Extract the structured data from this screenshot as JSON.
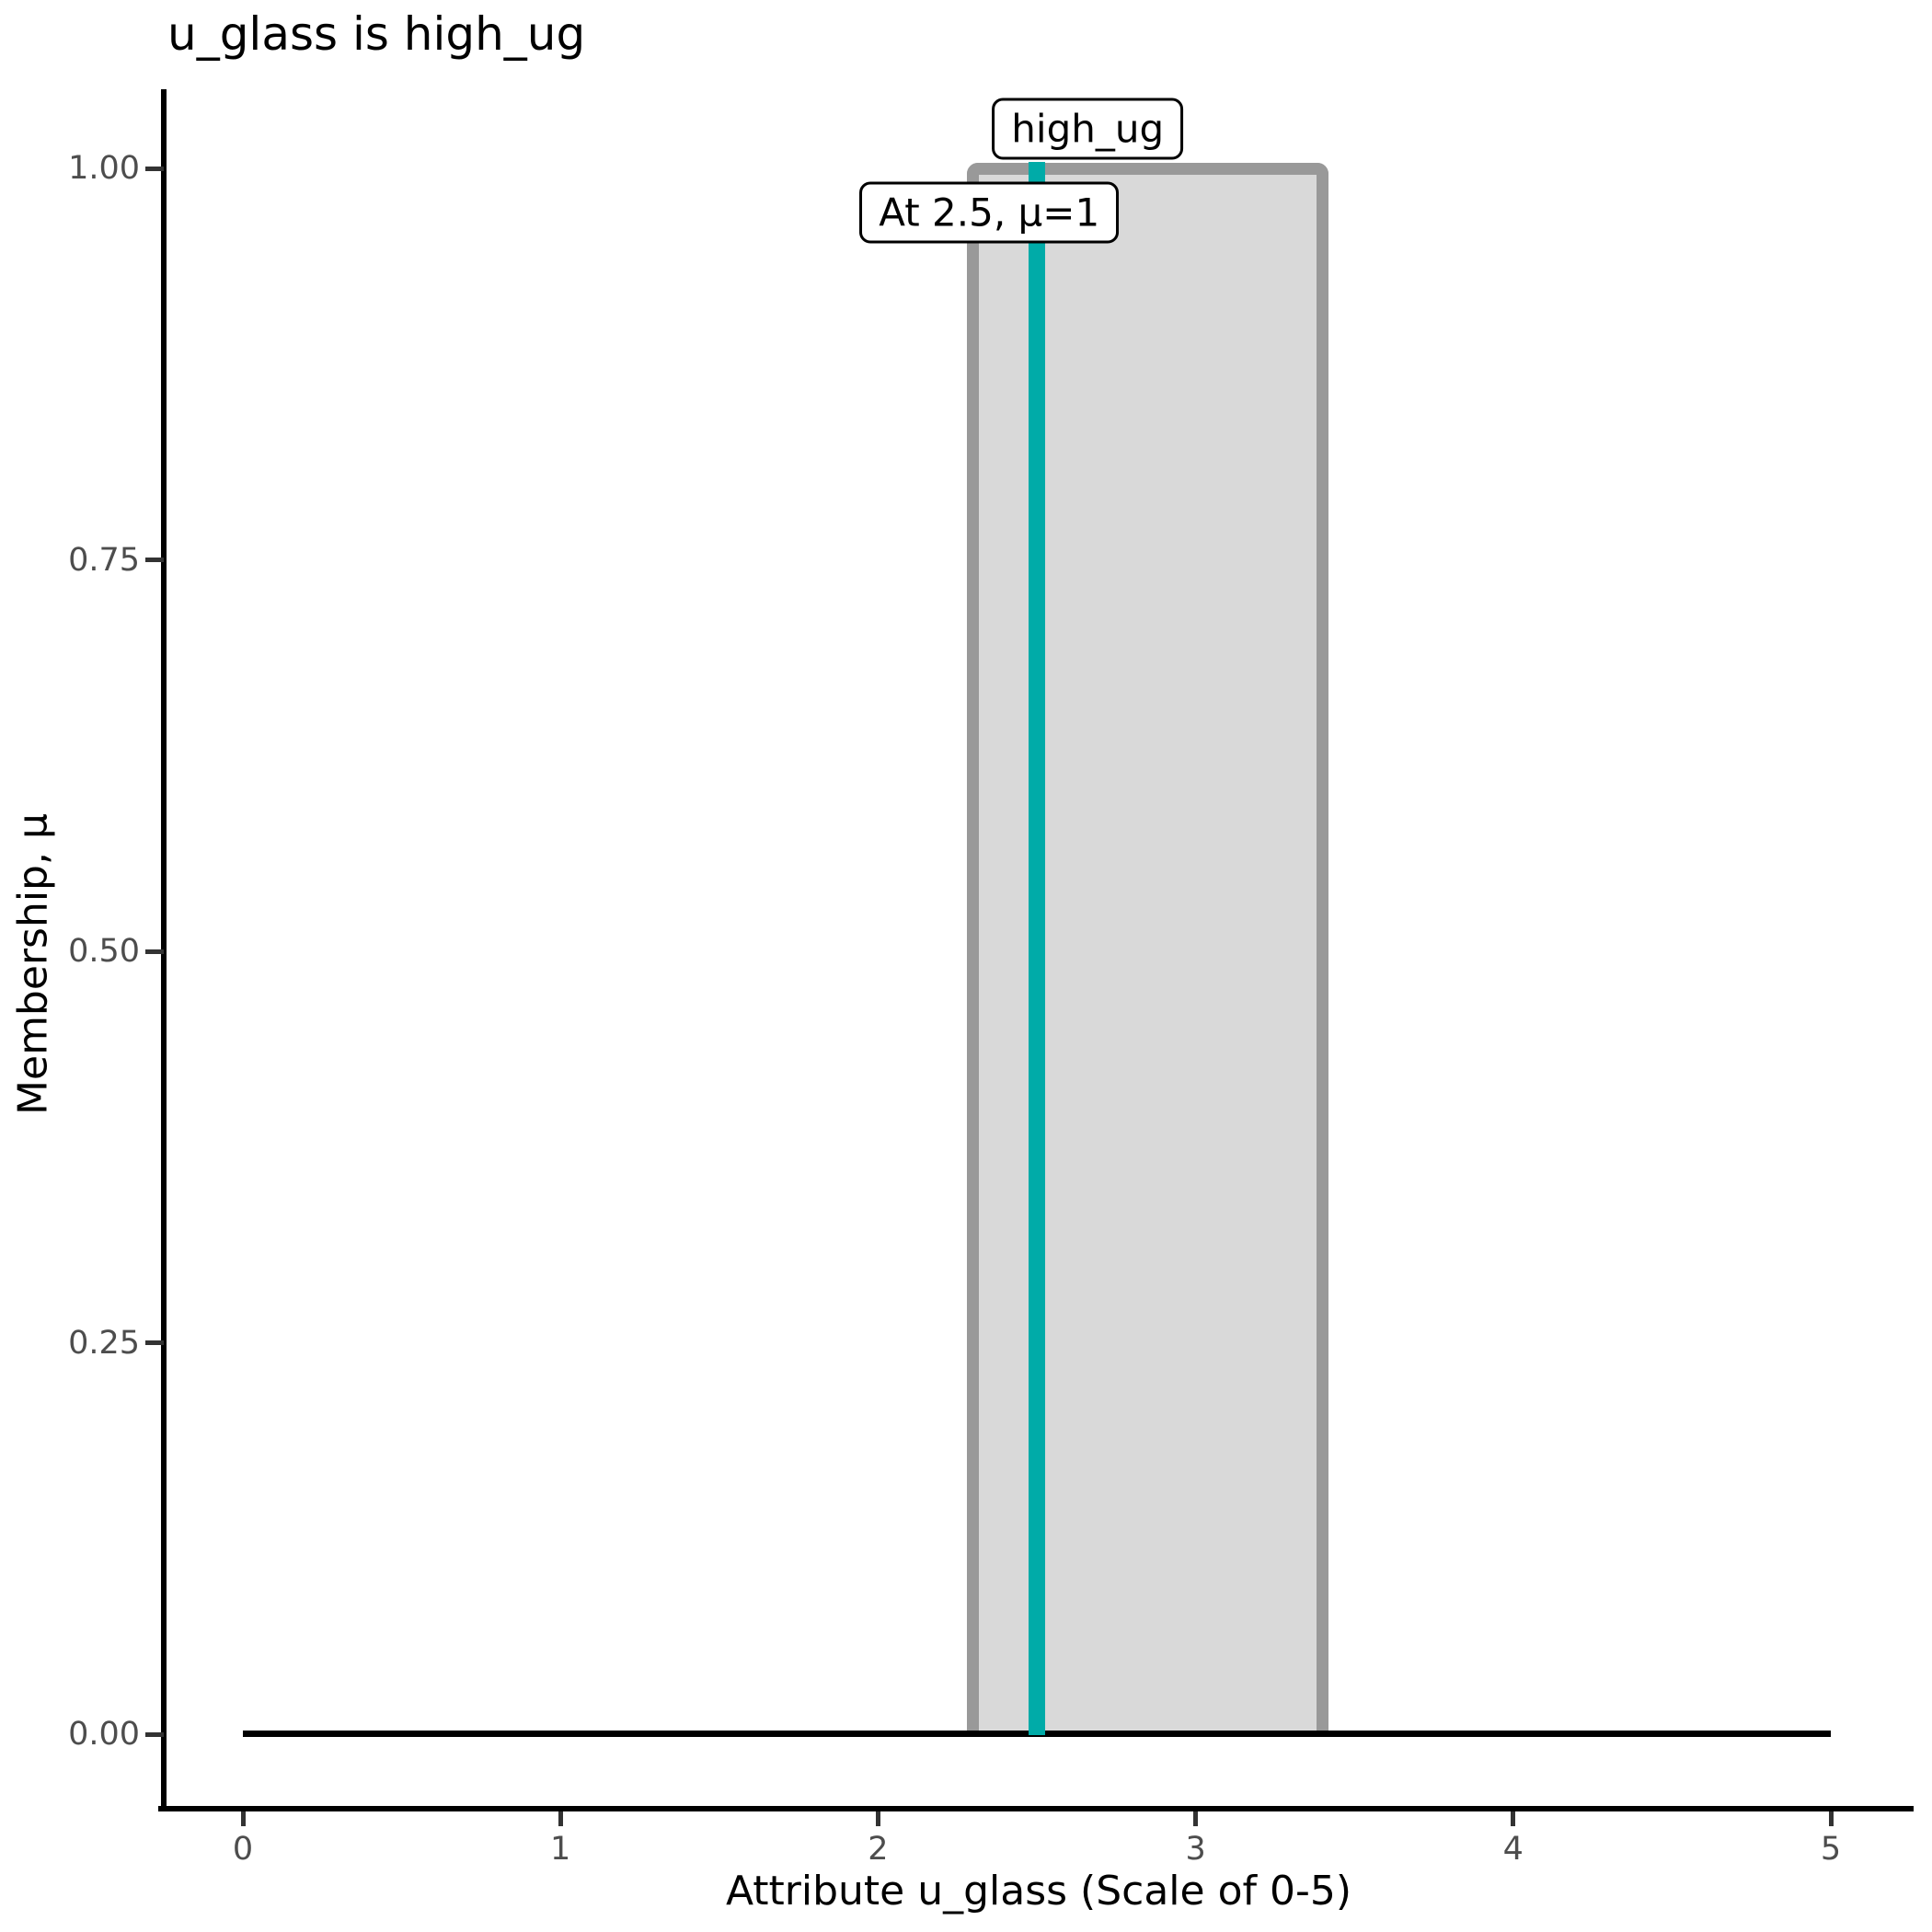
{
  "chart_data": {
    "type": "area",
    "title": "u_glass is high_ug",
    "xlabel": "Attribute u_glass (Scale of 0-5)",
    "ylabel": "Membership, μ",
    "xlim": [
      0,
      5
    ],
    "ylim": [
      0,
      1
    ],
    "grid": false,
    "legend": false,
    "x_ticks": [
      {
        "label": "0",
        "value": 0
      },
      {
        "label": "1",
        "value": 1
      },
      {
        "label": "2",
        "value": 2
      },
      {
        "label": "3",
        "value": 3
      },
      {
        "label": "4",
        "value": 4
      },
      {
        "label": "5",
        "value": 5
      }
    ],
    "y_ticks": [
      {
        "label": "0.00",
        "value": 0
      },
      {
        "label": "0.25",
        "value": 0.25
      },
      {
        "label": "0.50",
        "value": 0.5
      },
      {
        "label": "0.75",
        "value": 0.75
      },
      {
        "label": "1.00",
        "value": 1
      }
    ],
    "series": [
      {
        "name": "high_ug",
        "type": "membership-function",
        "shape": "rectangular",
        "x_left": 2.3,
        "x_right": 3.4,
        "mu": 1.0,
        "points_x": [
          0,
          2.3,
          2.3,
          3.4,
          3.4,
          5
        ],
        "points_mu": [
          0,
          0,
          1,
          1,
          0,
          0
        ]
      },
      {
        "name": "input-value",
        "type": "vline",
        "x": 2.5,
        "mu_top": 1.0
      }
    ],
    "annotations": [
      {
        "text": "high_ug",
        "anchor_x": 2.66,
        "anchor_mu": 1.025
      },
      {
        "text": "At 2.5, μ=1",
        "anchor_x": 2.35,
        "anchor_mu": 0.972
      }
    ]
  },
  "colors": {
    "background": "#FFFFFF",
    "axis": "#000000",
    "tick_mark": "#333333",
    "tick_label": "#4D4D4D",
    "membership_fill": "#D9D9D9",
    "membership_border": "#999999",
    "input_line": "#00ABA8",
    "baseline": "#000000",
    "annotation_bg": "#FFFFFF",
    "annotation_border": "#000000"
  }
}
